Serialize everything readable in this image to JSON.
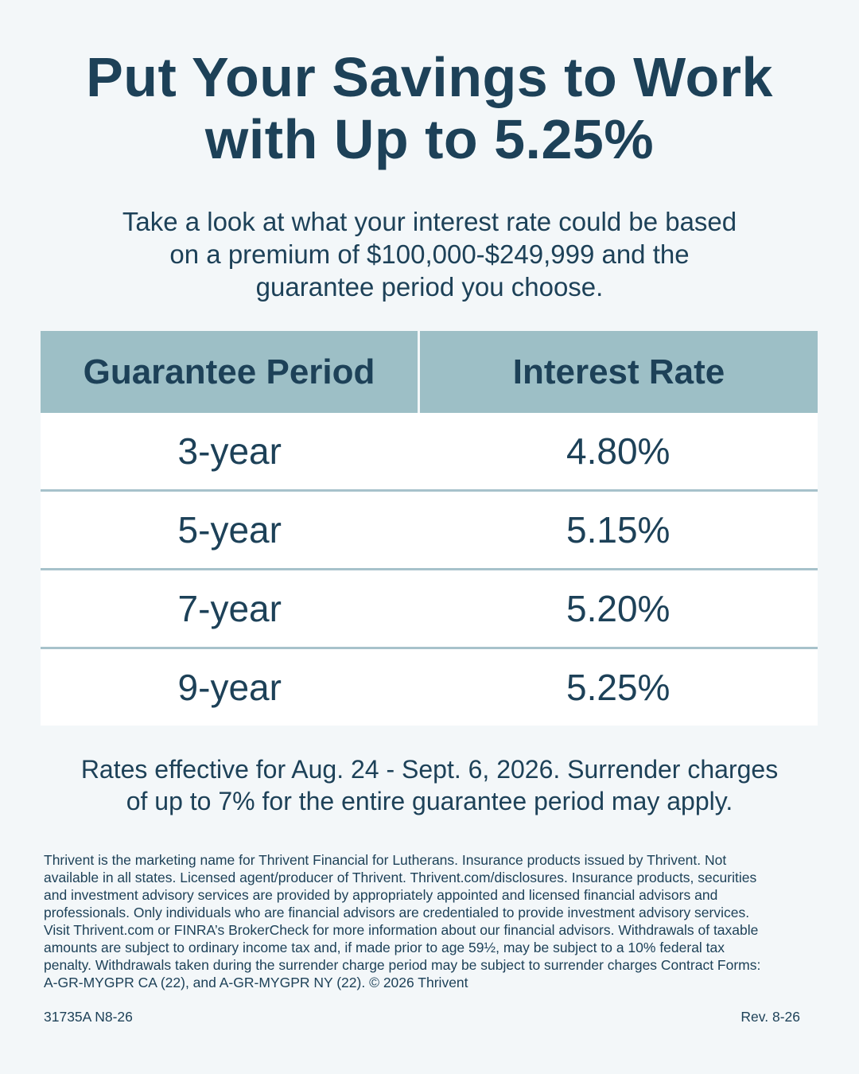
{
  "headline": {
    "line1": "Put Your Savings to Work",
    "line2": "with Up to 5.25%"
  },
  "intro": {
    "line1": "Take a look at what your interest rate could be based",
    "line2": "on a premium of $100,000-$249,999 and the",
    "line3": "guarantee period you choose."
  },
  "table": {
    "headers": [
      "Guarantee Period",
      "Interest Rate"
    ],
    "rows": [
      {
        "period": "3-year",
        "rate": "4.80%"
      },
      {
        "period": "5-year",
        "rate": "5.15%"
      },
      {
        "period": "7-year",
        "rate": "5.20%"
      },
      {
        "period": "9-year",
        "rate": "5.25%"
      }
    ]
  },
  "rates_note": {
    "line1": "Rates effective for Aug. 24 - Sept. 6, 2026. Surrender charges",
    "line2": "of up to 7% for the entire guarantee period may apply."
  },
  "disclosure": {
    "lines": [
      "Thrivent is the marketing name for Thrivent Financial for Lutherans. Insurance products issued by Thrivent. Not",
      "available in all states. Licensed agent/producer of Thrivent. Thrivent.com/disclosures. Insurance products, securities",
      "and investment advisory services are provided by appropriately appointed and licensed financial advisors and",
      "professionals. Only individuals who are financial advisors are credentialed to provide investment advisory services.",
      "Visit Thrivent.com or FINRA’s BrokerCheck for more information about our financial advisors. Withdrawals of taxable",
      "amounts are subject to ordinary income tax and, if made prior to age 59½, may be subject to a 10% federal tax",
      "penalty. Withdrawals taken during the surrender charge period may be subject to surrender charges Contract Forms:",
      "A-GR-MYGPR CA (22), and A-GR-MYGPR NY (22). © 2026 Thrivent"
    ]
  },
  "footer": {
    "form_code": "31735A N8-26",
    "revision": "Rev. 8-26"
  },
  "colors": {
    "text": "#1d4158",
    "background": "#f3f7f9",
    "table_header": "#9dbfc6",
    "row_divider": "#a7c2cb"
  }
}
